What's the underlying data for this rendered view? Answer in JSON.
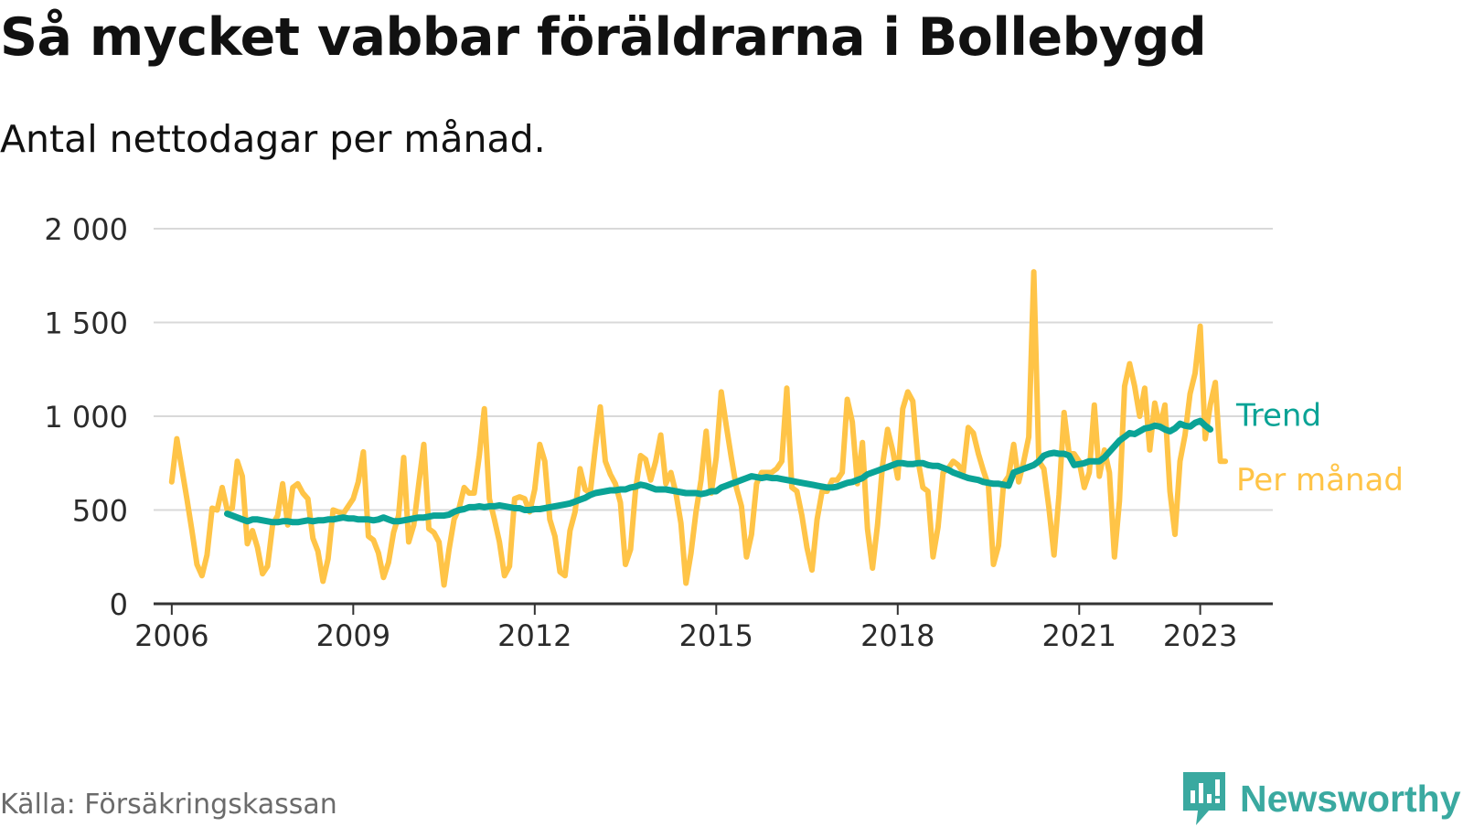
{
  "header": {
    "title": "Så mycket vabbar föräldrarna i Bollebygd",
    "subtitle": "Antal nettodagar per månad."
  },
  "footer": {
    "source": "Källa: Försäkringskassan",
    "brand": "Newsworthy"
  },
  "icons": {
    "brand_logo": "newsworthy-logo-icon"
  },
  "colors": {
    "per_month": "#ffc447",
    "trend": "#0aa396",
    "grid": "#d9d9d9",
    "axis": "#333333",
    "brand": "#3aa9a0"
  },
  "chart_data": {
    "type": "line",
    "title": "Så mycket vabbar föräldrarna i Bollebygd",
    "subtitle": "Antal nettodagar per månad.",
    "ylim": [
      0,
      2000
    ],
    "yticks": [
      0,
      500,
      1000,
      1500,
      2000
    ],
    "ytick_labels": [
      "0",
      "500",
      "1 000",
      "1 500",
      "2 000"
    ],
    "xlim": [
      2005.7,
      2024.2
    ],
    "xticks": [
      2006,
      2009,
      2012,
      2015,
      2018,
      2021,
      2023
    ],
    "xtick_labels": [
      "2006",
      "2009",
      "2012",
      "2015",
      "2018",
      "2021",
      "2023"
    ],
    "grid": "horizontal",
    "legend": "right, at line ends",
    "series": [
      {
        "name": "Per månad",
        "start": 2006.0,
        "step": 0.08333,
        "values": [
          650,
          880,
          720,
          560,
          390,
          210,
          150,
          260,
          510,
          500,
          620,
          500,
          510,
          760,
          680,
          320,
          390,
          300,
          160,
          200,
          420,
          470,
          640,
          420,
          620,
          640,
          590,
          560,
          350,
          280,
          120,
          240,
          500,
          490,
          480,
          520,
          560,
          650,
          810,
          360,
          340,
          270,
          140,
          220,
          380,
          470,
          780,
          330,
          420,
          640,
          850,
          400,
          380,
          330,
          100,
          290,
          450,
          510,
          620,
          590,
          590,
          790,
          1040,
          560,
          450,
          330,
          150,
          200,
          560,
          570,
          560,
          490,
          610,
          850,
          760,
          450,
          360,
          170,
          150,
          390,
          490,
          720,
          610,
          590,
          830,
          1050,
          760,
          690,
          640,
          540,
          210,
          290,
          610,
          790,
          770,
          660,
          760,
          900,
          640,
          700,
          590,
          430,
          110,
          270,
          490,
          660,
          920,
          590,
          780,
          1130,
          950,
          780,
          620,
          520,
          250,
          370,
          640,
          700,
          700,
          700,
          720,
          760,
          1150,
          620,
          600,
          470,
          300,
          180,
          450,
          600,
          600,
          660,
          660,
          700,
          1090,
          970,
          640,
          860,
          400,
          190,
          420,
          740,
          930,
          820,
          670,
          1040,
          1130,
          1080,
          770,
          620,
          600,
          250,
          410,
          700,
          720,
          760,
          740,
          700,
          940,
          910,
          800,
          710,
          630,
          210,
          310,
          640,
          680,
          850,
          650,
          760,
          890,
          1770,
          760,
          720,
          510,
          260,
          580,
          1020,
          800,
          800,
          760,
          620,
          700,
          1060,
          680,
          820,
          700,
          250,
          550,
          1160,
          1280,
          1160,
          1000,
          1150,
          820,
          1070,
          940,
          1060,
          600,
          370,
          760,
          900,
          1120,
          1230,
          1480,
          880,
          1060,
          1180,
          760,
          760
        ]
      },
      {
        "name": "Trend",
        "start": 2006.917,
        "step": 0.08333,
        "values": [
          480,
          470,
          460,
          450,
          440,
          450,
          450,
          445,
          440,
          435,
          435,
          440,
          440,
          435,
          435,
          440,
          445,
          440,
          445,
          445,
          450,
          450,
          455,
          460,
          455,
          455,
          450,
          450,
          450,
          445,
          450,
          460,
          450,
          440,
          440,
          445,
          450,
          455,
          460,
          460,
          465,
          470,
          470,
          470,
          475,
          490,
          500,
          505,
          515,
          515,
          520,
          515,
          520,
          520,
          525,
          520,
          515,
          510,
          510,
          500,
          500,
          505,
          505,
          510,
          515,
          520,
          525,
          530,
          535,
          545,
          555,
          565,
          580,
          590,
          595,
          600,
          605,
          605,
          610,
          610,
          620,
          625,
          635,
          630,
          620,
          610,
          610,
          610,
          605,
          600,
          595,
          590,
          590,
          590,
          585,
          590,
          600,
          600,
          620,
          630,
          640,
          650,
          660,
          670,
          680,
          675,
          670,
          675,
          670,
          670,
          665,
          660,
          655,
          650,
          645,
          640,
          635,
          630,
          625,
          620,
          620,
          625,
          635,
          645,
          650,
          660,
          670,
          690,
          700,
          710,
          720,
          730,
          740,
          750,
          750,
          745,
          745,
          750,
          750,
          740,
          735,
          735,
          725,
          715,
          700,
          690,
          680,
          670,
          665,
          660,
          650,
          645,
          640,
          640,
          635,
          630,
          700,
          710,
          720,
          730,
          740,
          760,
          790,
          800,
          805,
          800,
          800,
          790,
          740,
          745,
          750,
          760,
          760,
          760,
          780,
          810,
          840,
          870,
          890,
          910,
          905,
          920,
          935,
          940,
          950,
          945,
          930,
          920,
          935,
          960,
          950,
          945,
          965,
          975,
          950,
          930
        ]
      }
    ]
  }
}
